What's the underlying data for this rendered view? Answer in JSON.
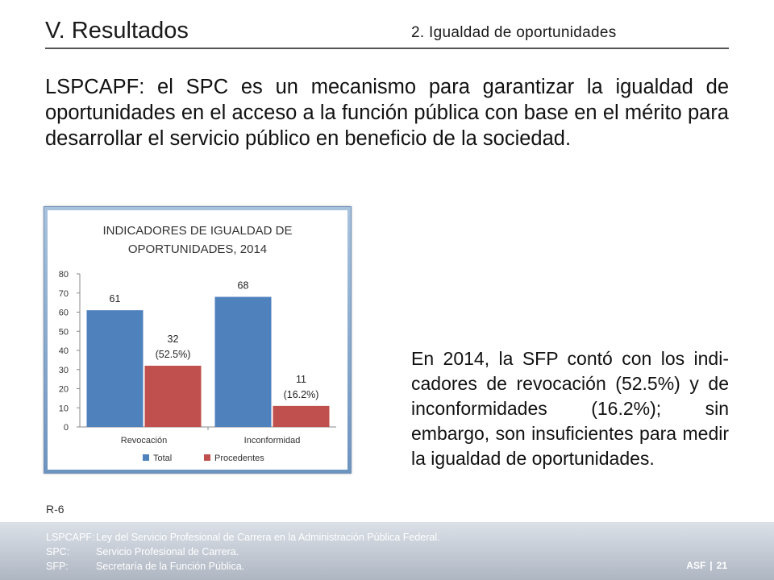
{
  "header": {
    "title": "V. Resultados",
    "subtitle": "2. Igualdad de oportunidades"
  },
  "intro_text": "LSPCAPF: el SPC es un mecanismo para garantizar la igualdad de oportunidades en el acceso a la función pública con base en el mérito para desarrollar el servicio público en beneficio de la sociedad.",
  "side_text": "En 2014, la SFP contó con los indi-cadores de revocación (52.5%) y de inconformidades (16.2%); sin embargo, son insuficientes para medir la igualdad de oportunidades.",
  "ref_code": "R-6",
  "chart_data": {
    "type": "bar",
    "title": [
      "INDICADORES DE IGUALDAD DE",
      "OPORTUNIDADES, 2014"
    ],
    "categories": [
      "Revocación",
      "Inconformidad"
    ],
    "series": [
      {
        "name": "Total",
        "values": [
          61,
          68
        ],
        "labels": [
          "61",
          "68"
        ],
        "color": "#4f81bd"
      },
      {
        "name": "Procedentes",
        "values": [
          32,
          11
        ],
        "labels": [
          "32\n(52.5%)",
          "11\n(16.2%)"
        ],
        "color": "#c0504d"
      }
    ],
    "ylim": [
      0,
      80
    ],
    "yticks": [
      0,
      10,
      20,
      30,
      40,
      50,
      60,
      70,
      80
    ],
    "grid": false,
    "legend": "bottom"
  },
  "footer": {
    "definitions": [
      {
        "abbr": "LSPCAPF:",
        "text": "Ley del Servicio Profesional de Carrera en la Administración Pública Federal."
      },
      {
        "abbr": "SPC:",
        "text": "Servicio Profesional de Carrera."
      },
      {
        "abbr": "SFP:",
        "text": "Secretaría de la Función Pública."
      }
    ],
    "org": "ASF",
    "separator": "|",
    "page": "21"
  }
}
